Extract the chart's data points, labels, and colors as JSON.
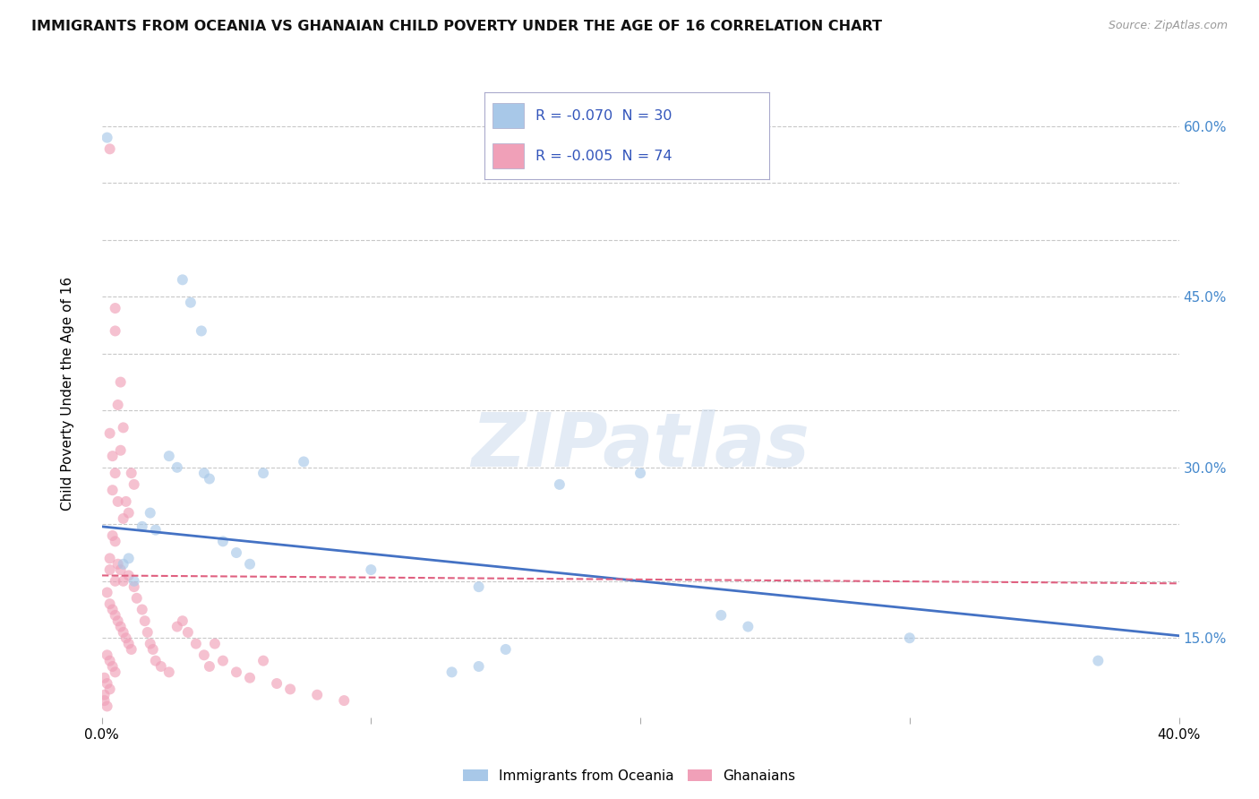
{
  "title": "IMMIGRANTS FROM OCEANIA VS GHANAIAN CHILD POVERTY UNDER THE AGE OF 16 CORRELATION CHART",
  "source": "Source: ZipAtlas.com",
  "ylabel": "Child Poverty Under the Age of 16",
  "ylim": [
    0.08,
    0.65
  ],
  "xlim": [
    0.0,
    0.4
  ],
  "yticks": [
    0.15,
    0.2,
    0.25,
    0.3,
    0.35,
    0.4,
    0.45,
    0.5,
    0.55,
    0.6
  ],
  "ytick_labels": [
    "15.0%",
    "",
    "",
    "30.0%",
    "",
    "",
    "45.0%",
    "",
    "",
    "60.0%"
  ],
  "xtick_positions": [
    0.0,
    0.1,
    0.2,
    0.3,
    0.4
  ],
  "watermark_text": "ZIPatlas",
  "oceania_line": {
    "x0": 0.0,
    "y0": 0.248,
    "x1": 0.4,
    "y1": 0.152
  },
  "ghanaian_line": {
    "x0": 0.0,
    "y0": 0.205,
    "x1": 0.4,
    "y1": 0.198
  },
  "oceania_points": [
    [
      0.002,
      0.59
    ],
    [
      0.03,
      0.465
    ],
    [
      0.033,
      0.445
    ],
    [
      0.037,
      0.42
    ],
    [
      0.025,
      0.31
    ],
    [
      0.028,
      0.3
    ],
    [
      0.06,
      0.295
    ],
    [
      0.075,
      0.305
    ],
    [
      0.04,
      0.29
    ],
    [
      0.038,
      0.295
    ],
    [
      0.018,
      0.26
    ],
    [
      0.015,
      0.248
    ],
    [
      0.02,
      0.245
    ],
    [
      0.045,
      0.235
    ],
    [
      0.05,
      0.225
    ],
    [
      0.055,
      0.215
    ],
    [
      0.01,
      0.22
    ],
    [
      0.008,
      0.215
    ],
    [
      0.012,
      0.2
    ],
    [
      0.1,
      0.21
    ],
    [
      0.14,
      0.195
    ],
    [
      0.17,
      0.285
    ],
    [
      0.2,
      0.295
    ],
    [
      0.23,
      0.17
    ],
    [
      0.13,
      0.12
    ],
    [
      0.15,
      0.14
    ],
    [
      0.24,
      0.16
    ],
    [
      0.14,
      0.125
    ],
    [
      0.3,
      0.15
    ],
    [
      0.37,
      0.13
    ]
  ],
  "ghanaian_points": [
    [
      0.003,
      0.58
    ],
    [
      0.005,
      0.44
    ],
    [
      0.005,
      0.42
    ],
    [
      0.007,
      0.375
    ],
    [
      0.006,
      0.355
    ],
    [
      0.008,
      0.335
    ],
    [
      0.007,
      0.315
    ],
    [
      0.005,
      0.295
    ],
    [
      0.004,
      0.28
    ],
    [
      0.006,
      0.27
    ],
    [
      0.008,
      0.255
    ],
    [
      0.009,
      0.27
    ],
    [
      0.01,
      0.26
    ],
    [
      0.011,
      0.295
    ],
    [
      0.012,
      0.285
    ],
    [
      0.003,
      0.33
    ],
    [
      0.004,
      0.31
    ],
    [
      0.004,
      0.24
    ],
    [
      0.005,
      0.235
    ],
    [
      0.003,
      0.22
    ],
    [
      0.003,
      0.21
    ],
    [
      0.006,
      0.215
    ],
    [
      0.005,
      0.2
    ],
    [
      0.007,
      0.21
    ],
    [
      0.008,
      0.2
    ],
    [
      0.002,
      0.19
    ],
    [
      0.003,
      0.18
    ],
    [
      0.004,
      0.175
    ],
    [
      0.005,
      0.17
    ],
    [
      0.006,
      0.165
    ],
    [
      0.007,
      0.16
    ],
    [
      0.008,
      0.155
    ],
    [
      0.009,
      0.15
    ],
    [
      0.01,
      0.145
    ],
    [
      0.011,
      0.14
    ],
    [
      0.002,
      0.135
    ],
    [
      0.003,
      0.13
    ],
    [
      0.004,
      0.125
    ],
    [
      0.005,
      0.12
    ],
    [
      0.001,
      0.115
    ],
    [
      0.002,
      0.11
    ],
    [
      0.003,
      0.105
    ],
    [
      0.001,
      0.1
    ],
    [
      0.001,
      0.095
    ],
    [
      0.002,
      0.09
    ],
    [
      0.01,
      0.205
    ],
    [
      0.012,
      0.195
    ],
    [
      0.013,
      0.185
    ],
    [
      0.015,
      0.175
    ],
    [
      0.016,
      0.165
    ],
    [
      0.017,
      0.155
    ],
    [
      0.018,
      0.145
    ],
    [
      0.019,
      0.14
    ],
    [
      0.02,
      0.13
    ],
    [
      0.022,
      0.125
    ],
    [
      0.025,
      0.12
    ],
    [
      0.028,
      0.16
    ],
    [
      0.03,
      0.165
    ],
    [
      0.032,
      0.155
    ],
    [
      0.035,
      0.145
    ],
    [
      0.038,
      0.135
    ],
    [
      0.04,
      0.125
    ],
    [
      0.042,
      0.145
    ],
    [
      0.045,
      0.13
    ],
    [
      0.05,
      0.12
    ],
    [
      0.055,
      0.115
    ],
    [
      0.06,
      0.13
    ],
    [
      0.065,
      0.11
    ],
    [
      0.07,
      0.105
    ],
    [
      0.08,
      0.1
    ],
    [
      0.09,
      0.095
    ]
  ],
  "oceania_color": "#a8c8e8",
  "ghanaian_color": "#f0a0b8",
  "oceania_line_color": "#4472c4",
  "ghanaian_line_color": "#e06080",
  "background_color": "#ffffff",
  "grid_color": "#c8c8c8",
  "title_fontsize": 11.5,
  "axis_fontsize": 11,
  "marker_size": 75,
  "marker_alpha": 0.65,
  "legend_R_color": "#3355bb"
}
